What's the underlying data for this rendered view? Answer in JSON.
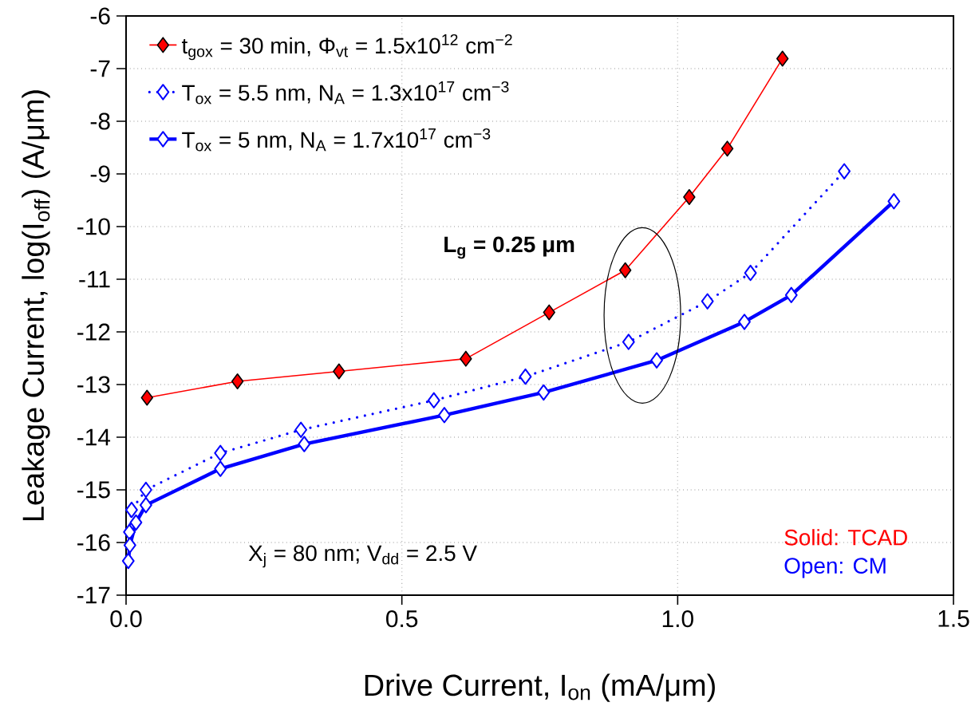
{
  "chart_data": {
    "type": "line",
    "xlabel": "Drive Current, I$_{on}$ (mA/μm)",
    "ylabel": "Leakage Current, log(I$_{off}$) (A/μm)",
    "xlim": [
      0,
      1.5
    ],
    "ylim": [
      -17,
      -6
    ],
    "xticks": [
      {
        "value": 0,
        "label": "0.0"
      },
      {
        "value": 0.5,
        "label": "0.5"
      },
      {
        "value": 1,
        "label": "1.0"
      },
      {
        "value": 1.5,
        "label": "1.5"
      }
    ],
    "yticks": [
      -17,
      -16,
      -15,
      -14,
      -13,
      -12,
      -11,
      -10,
      -9,
      -8,
      -7,
      -6
    ],
    "grid": true,
    "legend": "top left",
    "marker": "diamond",
    "series": [
      {
        "name": "t$_{gox}$ = 30 min, Φ$_{vt}$ = 1.5x10$^{12}$ cm$^{−2}$",
        "color": "#ff0000",
        "line_style": "solid",
        "x": [
          0.038,
          0.202,
          0.386,
          0.616,
          0.767,
          0.905,
          1.021,
          1.09,
          1.19
        ],
        "values": [
          -13.25,
          -12.94,
          -12.75,
          -12.51,
          -11.63,
          -10.83,
          -9.44,
          -8.52,
          -6.81
        ]
      },
      {
        "name": "T$_{ox}$ = 5.5 nm, N$_{A}$ = 1.3x10$^{17}$ cm$^{−3}$",
        "color": "#0000ff",
        "line_style": "dotted",
        "x": [
          0.006,
          0.01,
          0.036,
          0.171,
          0.317,
          0.558,
          0.724,
          0.911,
          1.054,
          1.132,
          1.302
        ],
        "values": [
          -15.8,
          -15.38,
          -15.0,
          -14.3,
          -13.86,
          -13.3,
          -12.85,
          -12.19,
          -11.42,
          -10.88,
          -8.95
        ]
      },
      {
        "name": "T$_{ox}$ = 5 nm, N$_{A}$ = 1.7x10$^{17}$ cm$^{−3}$",
        "color": "#0000ff",
        "line_style": "solid",
        "x": [
          0.004,
          0.007,
          0.018,
          0.036,
          0.171,
          0.323,
          0.577,
          0.757,
          0.962,
          1.121,
          1.206,
          1.392
        ],
        "values": [
          -16.35,
          -16.05,
          -15.62,
          -15.29,
          -14.6,
          -14.13,
          -13.58,
          -13.15,
          -12.54,
          -11.81,
          -11.3,
          -9.52
        ]
      }
    ],
    "annotations": [
      "L$_{g}$ = 0.25 μm",
      "X$_{j}$ = 80 nm; V$_{dd}$ = 2.5 V",
      "Solid: TCAD",
      "Open: CM"
    ]
  }
}
